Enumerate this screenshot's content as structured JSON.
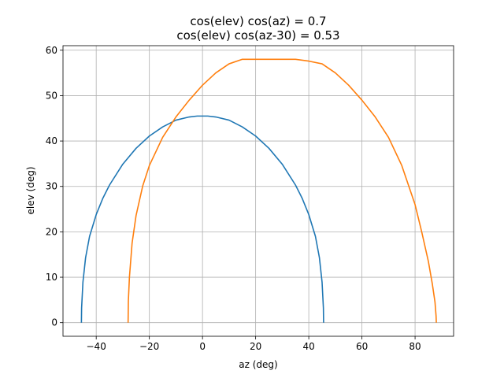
{
  "chart_data": {
    "type": "line",
    "title_line1": "cos(elev) cos(az) = 0.7",
    "title_line2": "cos(elev) cos(az-30) = 0.53",
    "xlabel": "az (deg)",
    "ylabel": "elev (deg)",
    "xlim": [
      -52.5,
      94.5
    ],
    "ylim": [
      -3,
      61
    ],
    "xticks": [
      -40,
      -20,
      0,
      20,
      40,
      60,
      80
    ],
    "xtick_labels": [
      "−40",
      "−20",
      "0",
      "20",
      "40",
      "60",
      "80"
    ],
    "yticks": [
      0,
      10,
      20,
      30,
      40,
      50,
      60
    ],
    "ytick_labels": [
      "0",
      "10",
      "20",
      "30",
      "40",
      "50",
      "60"
    ],
    "grid": true,
    "series": [
      {
        "color": "#1f77b4",
        "x": [
          -45.57,
          -45.5,
          -45.0,
          -44.0,
          -42.5,
          -40.0,
          -37.5,
          -35.0,
          -30.0,
          -25.0,
          -20.0,
          -15.0,
          -10.0,
          -5.0,
          -2.0,
          0.0,
          2.0,
          5.0,
          10.0,
          15.0,
          20.0,
          25.0,
          30.0,
          35.0,
          37.5,
          40.0,
          42.5,
          44.0,
          45.0,
          45.5,
          45.57
        ],
        "y": [
          0.0,
          3.2,
          8.9,
          14.3,
          19.0,
          23.8,
          27.4,
          30.3,
          34.9,
          38.4,
          41.1,
          43.1,
          44.6,
          45.3,
          45.5,
          45.5,
          45.5,
          45.3,
          44.6,
          43.1,
          41.1,
          38.4,
          34.9,
          30.3,
          27.4,
          23.8,
          19.0,
          14.3,
          8.9,
          3.2,
          0.0
        ]
      },
      {
        "color": "#ff7f0e",
        "x": [
          -28.0,
          -27.9,
          -27.5,
          -26.5,
          -25.0,
          -22.5,
          -20.0,
          -15.0,
          -10.0,
          -5.0,
          0.0,
          5.0,
          10.0,
          15.0,
          20.0,
          25.0,
          27.0,
          30.0,
          33.0,
          35.0,
          40.0,
          45.0,
          50.0,
          55.0,
          60.0,
          65.0,
          70.0,
          75.0,
          80.0,
          82.5,
          85.0,
          86.5,
          87.5,
          87.9,
          88.0
        ],
        "y": [
          0.0,
          4.8,
          10.0,
          17.5,
          23.6,
          30.1,
          34.6,
          40.8,
          45.3,
          49.0,
          52.3,
          55.0,
          57.0,
          58.0,
          58.0,
          58.0,
          58.0,
          58.0,
          58.0,
          58.0,
          57.6,
          57.0,
          55.0,
          52.3,
          49.0,
          45.3,
          40.8,
          34.6,
          26.0,
          20.0,
          13.5,
          8.5,
          4.5,
          1.5,
          0.0
        ]
      }
    ]
  }
}
